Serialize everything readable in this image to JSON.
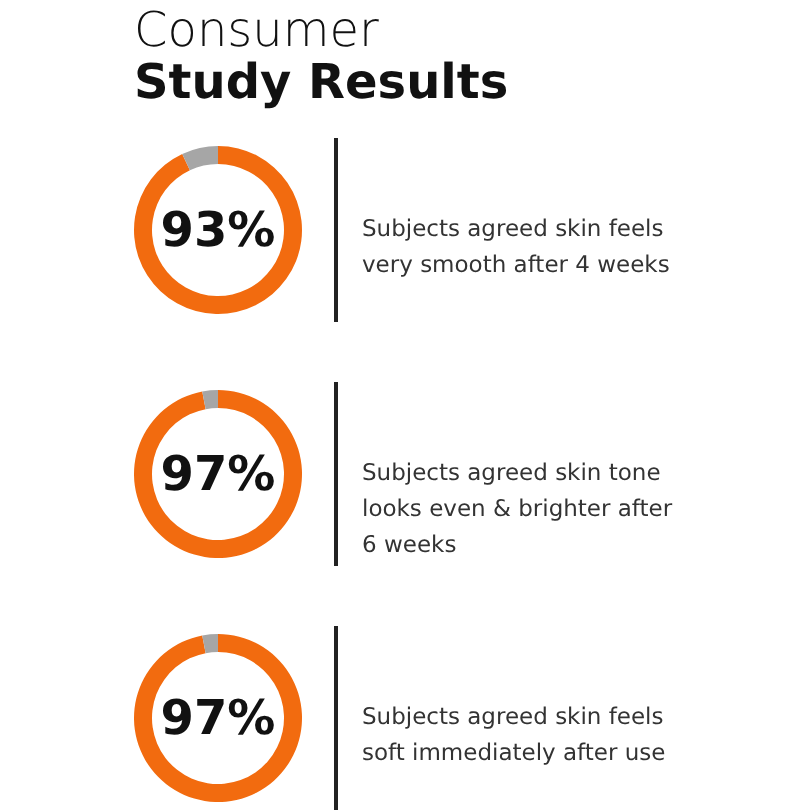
{
  "chart_data": [
    {
      "type": "donut",
      "title": "Consumer",
      "subtitle": "Study Results",
      "categories": [
        null,
        null
      ],
      "values": [
        93,
        7
      ],
      "colors": [
        "#f26b0f",
        "#a6a6a6"
      ],
      "value_labels": [
        "93%",
        null
      ],
      "annotations": [
        "Subjects agreed skin feels very smooth after 4 weeks"
      ]
    },
    {
      "type": "donut",
      "categories": [
        null,
        null
      ],
      "values": [
        97,
        3
      ],
      "colors": [
        "#f26b0f",
        "#a6a6a6"
      ],
      "value_labels": [
        "97%",
        null
      ],
      "annotations": [
        "Subjects agreed skin tone looks even & brighter after 6 weeks"
      ]
    },
    {
      "type": "donut",
      "categories": [
        null,
        null
      ],
      "values": [
        97,
        3
      ],
      "colors": [
        "#f26b0f",
        "#a6a6a6"
      ],
      "value_labels": [
        "97%",
        null
      ],
      "annotations": [
        "Subjects agreed skin feels soft immediately after use"
      ]
    }
  ]
}
